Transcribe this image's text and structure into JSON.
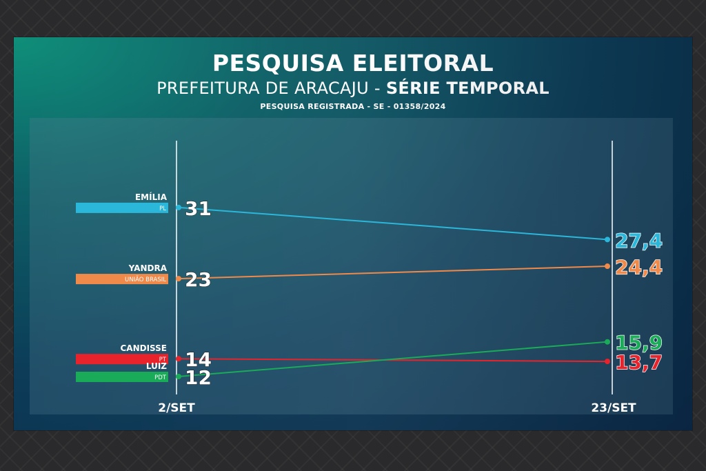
{
  "header": {
    "title": "PESQUISA ELEITORAL",
    "subtitle_part1": "PREFEITURA DE  ARACAJU - ",
    "subtitle_part2": "SÉRIE TEMPORAL",
    "registro": "PESQUISA REGISTRADA - SE - 01358/2024"
  },
  "chart_data": {
    "type": "line",
    "x": [
      "2/SET",
      "23/SET"
    ],
    "series": [
      {
        "name": "EMÍLIA",
        "party": "PL",
        "values": [
          31,
          27.4
        ],
        "labels": [
          "31",
          "27,4"
        ],
        "color": "#2bb7da"
      },
      {
        "name": "YANDRA",
        "party": "UNIÃO BRASIL",
        "values": [
          23,
          24.4
        ],
        "labels": [
          "23",
          "24,4"
        ],
        "color": "#f08a4b"
      },
      {
        "name": "CANDISSE",
        "party": "PT",
        "values": [
          14,
          13.7
        ],
        "labels": [
          "14",
          "13,7"
        ],
        "color": "#e8232b"
      },
      {
        "name": "LUIZ",
        "party": "PDT",
        "values": [
          12,
          15.9
        ],
        "labels": [
          "12",
          "15,9"
        ],
        "color": "#1aab58"
      }
    ],
    "grid": false
  }
}
